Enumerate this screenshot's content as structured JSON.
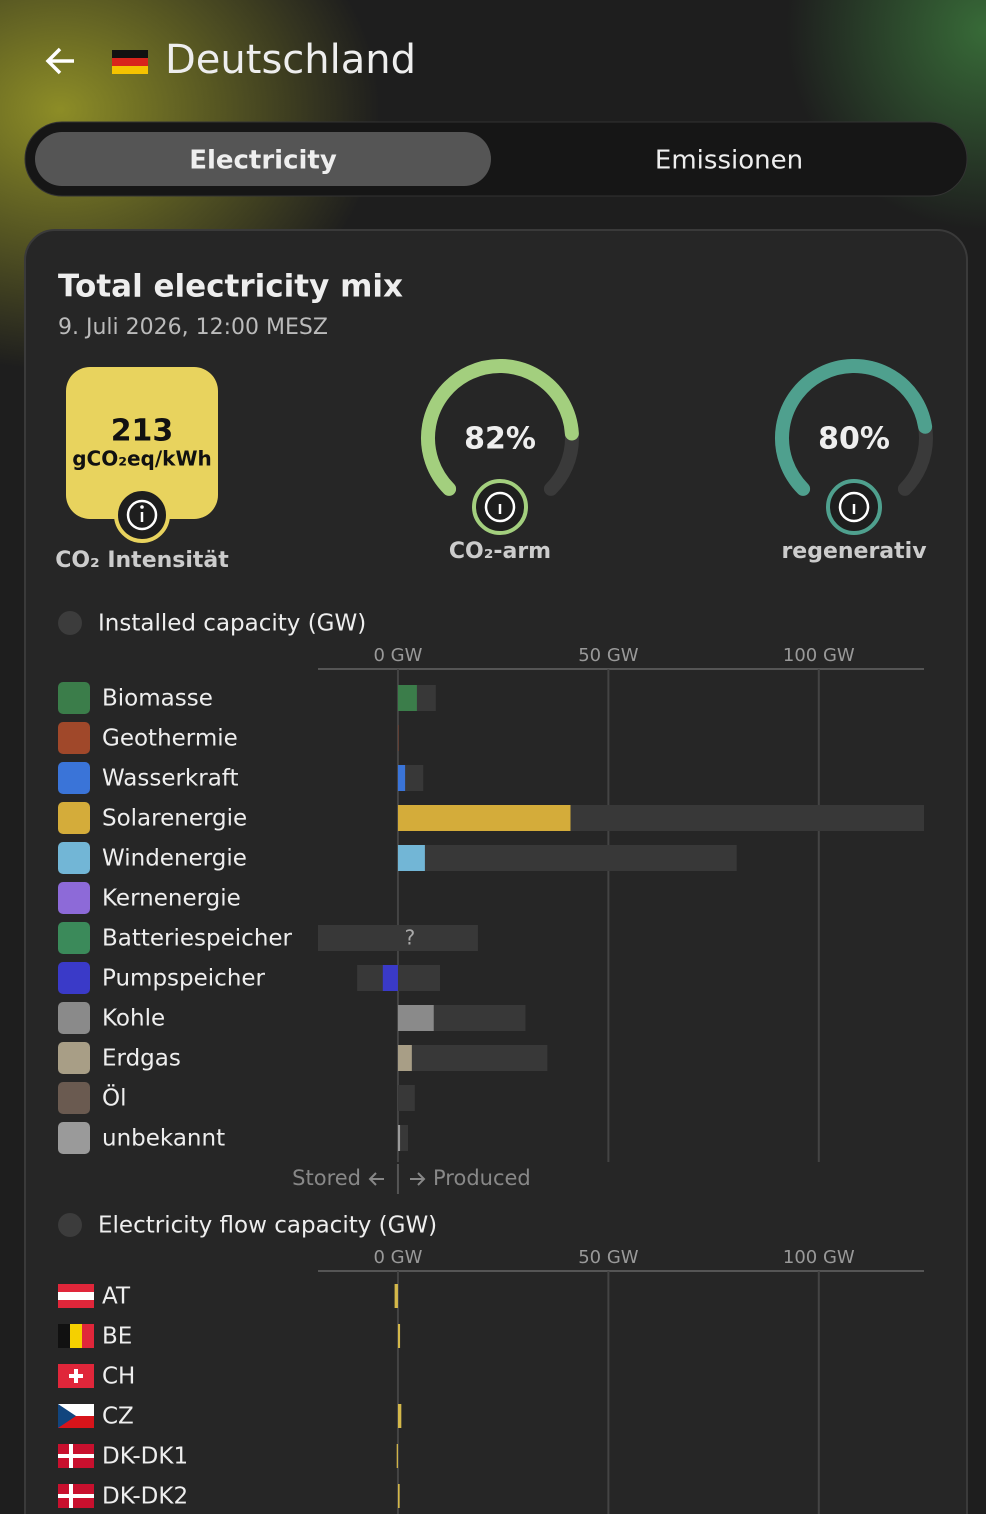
{
  "header": {
    "title": "Deutschland"
  },
  "tabs": [
    {
      "label": "Electricity",
      "active": true
    },
    {
      "label": "Emissionen",
      "active": false
    }
  ],
  "card": {
    "title": "Total electricity mix",
    "subtitle": "9. Juli 2026, 12:00 MESZ",
    "intensity": {
      "value": 213,
      "unit": "gCO₂eq/kWh",
      "label": "CO₂ Intensität",
      "color": "#e8d35e"
    },
    "gauges": [
      {
        "value": 82,
        "value_label": "82%",
        "label": "CO₂-arm",
        "color": "#a3cf7e",
        "ylim": [
          0,
          100
        ]
      },
      {
        "value": 80,
        "value_label": "80%",
        "label": "regenerativ",
        "color": "#4fa08e",
        "ylim": [
          0,
          100
        ]
      }
    ]
  },
  "chart_data": [
    {
      "type": "bar",
      "title": "Installed capacity (GW)",
      "categories": [
        "Biomasse",
        "Geothermie",
        "Wasserkraft",
        "Solarenergie",
        "Windenergie",
        "Kernenergie",
        "Batteriespeicher",
        "Pumpspeicher",
        "Kohle",
        "Erdgas",
        "Öl",
        "unbekannt"
      ],
      "colors": [
        "#3b7d4a",
        "#a0482a",
        "#3a74d8",
        "#d4ac3a",
        "#72b6d6",
        "#8d6ad8",
        "#3b8a5a",
        "#3a3ac8",
        "#8a8a8a",
        "#a89e86",
        "#6a5a50",
        "#9a9a9a"
      ],
      "values": [
        4.5,
        0.1,
        1.7,
        41,
        6.4,
        0,
        null,
        -3.6,
        8.5,
        3.3,
        0,
        0.5
      ],
      "value_labels": [
        null,
        null,
        null,
        null,
        null,
        null,
        "?",
        null,
        null,
        null,
        null,
        null
      ],
      "capacity": [
        9,
        0.2,
        6,
        125,
        80.5,
        0,
        19,
        10,
        30.3,
        35.5,
        4,
        2.4
      ],
      "storage_capacity": [
        null,
        null,
        null,
        null,
        null,
        null,
        -19,
        -9.7,
        null,
        null,
        null,
        null
      ],
      "xlim": [
        -19,
        125
      ],
      "xticks": [
        {
          "value": 0,
          "label": "0 GW"
        },
        {
          "value": 50,
          "label": "50 GW"
        },
        {
          "value": 100,
          "label": "100 GW"
        }
      ],
      "grid": true,
      "footer": {
        "left": "Stored",
        "right": "Produced"
      }
    },
    {
      "type": "bar",
      "title": "Electricity flow capacity (GW)",
      "categories": [
        "AT",
        "BE",
        "CH",
        "CZ",
        "DK-DK1",
        "DK-DK2"
      ],
      "values": [
        -0.8,
        0.5,
        0,
        0.8,
        -0.3,
        0.4
      ],
      "color": "#d4b84a",
      "xlim": [
        -19,
        125
      ],
      "xticks": [
        {
          "value": 0,
          "label": "0 GW"
        },
        {
          "value": 50,
          "label": "50 GW"
        },
        {
          "value": 100,
          "label": "100 GW"
        }
      ],
      "grid": true
    }
  ]
}
